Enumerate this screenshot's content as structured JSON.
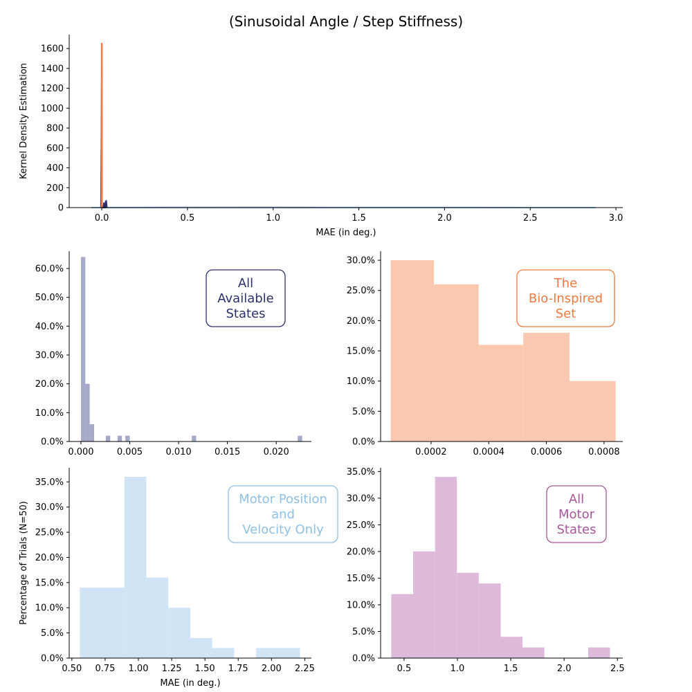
{
  "title": "(Sinusoidal Angle / Step Stiffness)",
  "colors": {
    "all": "#2c2f6e",
    "bio": "#f07a3f",
    "motorpv": "#8fc0e6",
    "motor": "#a8579b",
    "hist_all": "#a6a9c8",
    "hist_bio": "#f9c8ae",
    "hist_motorpv": "#d1e4f6",
    "hist_motor": "#ddbad9"
  },
  "chart_data": [
    {
      "id": "kde",
      "type": "line",
      "xlabel": "MAE (in deg.)",
      "ylabel": "Kernel Density Estimation",
      "xlim": [
        -0.19,
        3.04
      ],
      "ylim": [
        0,
        1740
      ],
      "xticks": [
        0.0,
        0.5,
        1.0,
        1.5,
        2.0,
        2.5,
        3.0
      ],
      "xtick_labels": [
        "0.0",
        "0.5",
        "1.0",
        "1.5",
        "2.0",
        "2.5",
        "3.0"
      ],
      "yticks": [
        0,
        200,
        400,
        600,
        800,
        1000,
        1200,
        1400,
        1600
      ],
      "ytick_labels": [
        "0",
        "200",
        "400",
        "600",
        "800",
        "1000",
        "1200",
        "1400",
        "1600"
      ],
      "series": [
        {
          "key": "motor",
          "x": [
            -0.06,
            0.2,
            0.8,
            1.0,
            1.4,
            2.2,
            2.88
          ],
          "y": [
            0,
            1,
            2,
            2,
            1,
            0.5,
            0
          ]
        },
        {
          "key": "motorpv",
          "x": [
            -0.06,
            0.3,
            0.8,
            1.0,
            1.4,
            2.2,
            2.88
          ],
          "y": [
            0,
            1,
            2,
            2,
            1,
            0.5,
            0
          ]
        },
        {
          "key": "all",
          "x": [
            -0.005,
            0.0,
            0.001,
            0.004,
            0.005,
            0.006,
            0.008,
            0.01,
            0.012,
            0.013,
            0.016,
            0.018,
            0.02,
            0.022,
            0.024,
            0.026,
            0.03
          ],
          "y": [
            0,
            1380,
            40,
            0,
            5,
            0,
            0,
            0,
            45,
            0,
            0,
            40,
            0,
            60,
            0,
            70,
            0
          ]
        },
        {
          "key": "bio",
          "x": [
            -0.003,
            -0.001,
            0.0,
            0.0005,
            0.001,
            0.002,
            0.003
          ],
          "y": [
            0,
            0,
            1650,
            1640,
            0,
            0,
            0
          ]
        }
      ]
    },
    {
      "id": "hist-all",
      "type": "bar",
      "legend": [
        "All",
        "Available",
        "States"
      ],
      "xlim": [
        -0.0012,
        0.0236
      ],
      "ylim": [
        0,
        0.66
      ],
      "xticks": [
        0.0,
        0.005,
        0.01,
        0.015,
        0.02
      ],
      "xtick_labels": [
        "0.000",
        "0.005",
        "0.010",
        "0.015",
        "0.020"
      ],
      "yticks": [
        0,
        0.1,
        0.2,
        0.3,
        0.4,
        0.5,
        0.6
      ],
      "ytick_labels": [
        "0.0%",
        "10.0%",
        "20.0%",
        "30.0%",
        "40.0%",
        "50.0%",
        "60.0%"
      ],
      "bin_start": 0.0,
      "bin_width": 0.00045,
      "bins": [
        {
          "x": 0.0,
          "y": 0.64
        },
        {
          "x": 0.00045,
          "y": 0.2
        },
        {
          "x": 0.0009,
          "y": 0.06
        },
        {
          "x": 0.00255,
          "y": 0.02
        },
        {
          "x": 0.00375,
          "y": 0.02
        },
        {
          "x": 0.00455,
          "y": 0.02
        },
        {
          "x": 0.01135,
          "y": 0.02
        },
        {
          "x": 0.0222,
          "y": 0.02
        }
      ]
    },
    {
      "id": "hist-bio",
      "type": "bar",
      "legend": [
        "The",
        "Bio-Inspired",
        "Set"
      ],
      "xlim": [
        2.5e-05,
        0.000865
      ],
      "ylim": [
        0,
        0.315
      ],
      "xticks": [
        0.0002,
        0.0004,
        0.0006,
        0.0008
      ],
      "xtick_labels": [
        "0.0002",
        "0.0004",
        "0.0006",
        "0.0008"
      ],
      "yticks": [
        0,
        0.05,
        0.1,
        0.15,
        0.2,
        0.25,
        0.3
      ],
      "ytick_labels": [
        "0.0%",
        "5.0%",
        "10.0%",
        "15.0%",
        "20.0%",
        "25.0%",
        "30.0%"
      ],
      "bins": [
        {
          "x0": 6e-05,
          "x1": 0.00021,
          "y": 0.3
        },
        {
          "x0": 0.00021,
          "x1": 0.000365,
          "y": 0.26
        },
        {
          "x0": 0.000365,
          "x1": 0.00052,
          "y": 0.16
        },
        {
          "x0": 0.00052,
          "x1": 0.00068,
          "y": 0.18
        },
        {
          "x0": 0.00068,
          "x1": 0.00084,
          "y": 0.1
        }
      ]
    },
    {
      "id": "hist-motorpv",
      "type": "bar",
      "legend": [
        "Motor Position",
        "and",
        "Velocity Only"
      ],
      "xlabel": "MAE (in deg.)",
      "ylabel": "Percentage of Trials (N=50)",
      "xlim": [
        0.48,
        2.3
      ],
      "ylim": [
        0,
        0.378
      ],
      "xticks": [
        0.5,
        0.75,
        1.0,
        1.25,
        1.5,
        1.75,
        2.0,
        2.25
      ],
      "xtick_labels": [
        "0.50",
        "0.75",
        "1.00",
        "1.25",
        "1.50",
        "1.75",
        "2.00",
        "2.25"
      ],
      "yticks": [
        0,
        0.05,
        0.1,
        0.15,
        0.2,
        0.25,
        0.3,
        0.35
      ],
      "ytick_labels": [
        "0.0%",
        "5.0%",
        "10.0%",
        "15.0%",
        "20.0%",
        "25.0%",
        "30.0%",
        "35.0%"
      ],
      "bins": [
        {
          "x0": 0.56,
          "x1": 0.895,
          "y": 0.14
        },
        {
          "x0": 0.895,
          "x1": 1.06,
          "y": 0.36
        },
        {
          "x0": 1.06,
          "x1": 1.225,
          "y": 0.16
        },
        {
          "x0": 1.225,
          "x1": 1.39,
          "y": 0.1
        },
        {
          "x0": 1.39,
          "x1": 1.555,
          "y": 0.04
        },
        {
          "x0": 1.555,
          "x1": 1.72,
          "y": 0.02
        },
        {
          "x0": 1.885,
          "x1": 2.215,
          "y": 0.02
        }
      ]
    },
    {
      "id": "hist-motor",
      "type": "bar",
      "legend": [
        "All",
        "Motor",
        "States"
      ],
      "xlim": [
        0.28,
        2.55
      ],
      "ylim": [
        0,
        0.357
      ],
      "xticks": [
        0.5,
        1.0,
        1.5,
        2.0,
        2.5
      ],
      "xtick_labels": [
        "0.5",
        "1.0",
        "1.5",
        "2.0",
        "2.5"
      ],
      "yticks": [
        0,
        0.05,
        0.1,
        0.15,
        0.2,
        0.25,
        0.3,
        0.35
      ],
      "ytick_labels": [
        "0.0%",
        "5.0%",
        "10.0%",
        "15.0%",
        "20.0%",
        "25.0%",
        "30.0%",
        "35.0%"
      ],
      "bins": [
        {
          "x0": 0.38,
          "x1": 0.585,
          "y": 0.12
        },
        {
          "x0": 0.585,
          "x1": 0.79,
          "y": 0.2
        },
        {
          "x0": 0.79,
          "x1": 0.995,
          "y": 0.34
        },
        {
          "x0": 0.995,
          "x1": 1.2,
          "y": 0.16
        },
        {
          "x0": 1.2,
          "x1": 1.405,
          "y": 0.14
        },
        {
          "x0": 1.405,
          "x1": 1.61,
          "y": 0.04
        },
        {
          "x0": 1.61,
          "x1": 1.815,
          "y": 0.02
        },
        {
          "x0": 2.225,
          "x1": 2.43,
          "y": 0.02
        }
      ]
    }
  ]
}
